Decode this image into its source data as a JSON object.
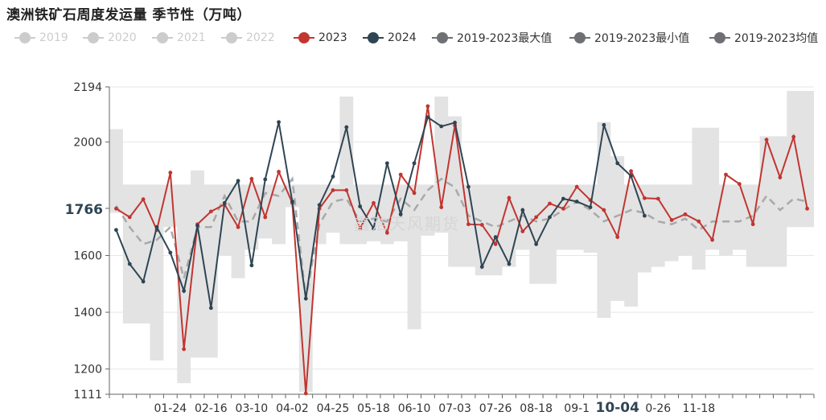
{
  "title": "澳洲铁矿石周度发运量 季节性（万吨）",
  "watermark": "鑫浩天风期货",
  "colors": {
    "disabled": "#cccccc",
    "y2023": "#c23531",
    "y2024": "#2f4554",
    "max": "#6e7074",
    "min": "#6e7074",
    "avg": "#6e7074",
    "band": "#e3e3e3",
    "avg_line": "#a9a9a9"
  },
  "legend": [
    {
      "label": "2019",
      "active": false,
      "color": "#cccccc",
      "icon": "circle-line-icon"
    },
    {
      "label": "2020",
      "active": false,
      "color": "#cccccc",
      "icon": "circle-line-icon"
    },
    {
      "label": "2021",
      "active": false,
      "color": "#cccccc",
      "icon": "circle-line-icon"
    },
    {
      "label": "2022",
      "active": false,
      "color": "#cccccc",
      "icon": "circle-line-icon"
    },
    {
      "label": "2023",
      "active": true,
      "color": "#c23531",
      "icon": "circle-line-icon"
    },
    {
      "label": "2024",
      "active": true,
      "color": "#2f4554",
      "icon": "circle-line-icon"
    },
    {
      "label": "2019-2023最大值",
      "active": true,
      "color": "#6e7074",
      "icon": "circle-line-icon"
    },
    {
      "label": "2019-2023最小值",
      "active": true,
      "color": "#6e7074",
      "icon": "circle-line-icon"
    },
    {
      "label": "2019-2023均值",
      "active": true,
      "color": "#6e7074",
      "icon": "circle-line-icon"
    }
  ],
  "chart_data": {
    "type": "line",
    "ylim": [
      1111,
      2194
    ],
    "y_ticks": [
      "1111",
      "1200",
      "1400",
      "1600",
      "2000",
      "2194"
    ],
    "y_pointer_label": "1766",
    "y_pointer_value": 1766,
    "x_tick_labels": [
      "01-24",
      "02-16",
      "03-10",
      "04-02",
      "04-25",
      "05-18",
      "06-10",
      "07-03",
      "07-26",
      "08-18",
      "09-1",
      "10-04",
      "0-26",
      "11-18"
    ],
    "x_tick_weeks": [
      4,
      7,
      10,
      13,
      16,
      19,
      22,
      25,
      28,
      31,
      34,
      37,
      40,
      43
    ],
    "x_pointer_label": "10-04",
    "x_pointer_week": 37,
    "weeks": 52,
    "series": [
      {
        "name": "2023",
        "color": "#c23531",
        "values": [
          1765,
          1735,
          1798,
          1690,
          1892,
          1270,
          1710,
          1755,
          1780,
          1700,
          1870,
          1735,
          1895,
          1785,
          1114,
          1765,
          1830,
          1830,
          1695,
          1785,
          1680,
          1885,
          1820,
          2126,
          1770,
          2058,
          1710,
          1708,
          1640,
          1803,
          1685,
          1735,
          1783,
          1765,
          1842,
          1795,
          1760,
          1665,
          1897,
          1802,
          1800,
          1725,
          1745,
          1720,
          1655,
          1885,
          1852,
          1710,
          2008,
          1875,
          2018,
          1765
        ]
      },
      {
        "name": "2024",
        "color": "#2f4554",
        "values": [
          1690,
          1570,
          1508,
          1700,
          1610,
          1475,
          1705,
          1415,
          1785,
          1863,
          1565,
          1868,
          2070,
          1790,
          1448,
          1778,
          1878,
          2052,
          1773,
          1695,
          1925,
          1745,
          1925,
          2087,
          2055,
          2068,
          1842,
          1560,
          1665,
          1570,
          1760,
          1640,
          1735,
          1800,
          1790,
          1770,
          2060,
          1925,
          1880,
          1740
        ]
      },
      {
        "name": "2019-2023最大值",
        "values": [
          2045,
          1850,
          1850,
          1850,
          1850,
          1850,
          1900,
          1850,
          1850,
          1850,
          1850,
          1850,
          1850,
          1850,
          1850,
          1850,
          1850,
          2160,
          1850,
          1850,
          1850,
          1850,
          1850,
          1850,
          2160,
          2090,
          1850,
          1850,
          1850,
          1850,
          1850,
          1850,
          1850,
          1850,
          1850,
          1850,
          2070,
          1950,
          1850,
          1850,
          1850,
          1850,
          1850,
          2050,
          2050,
          1850,
          1850,
          1850,
          2020,
          2020,
          2180,
          2180
        ]
      },
      {
        "name": "2019-2023最小值",
        "values": [
          1750,
          1360,
          1360,
          1230,
          1700,
          1150,
          1240,
          1240,
          1600,
          1520,
          1620,
          1660,
          1640,
          1770,
          1120,
          1640,
          1680,
          1640,
          1640,
          1650,
          1640,
          1650,
          1340,
          1670,
          1680,
          1560,
          1560,
          1530,
          1530,
          1560,
          1620,
          1500,
          1500,
          1620,
          1620,
          1610,
          1380,
          1440,
          1420,
          1540,
          1560,
          1580,
          1600,
          1550,
          1620,
          1600,
          1620,
          1560,
          1560,
          1560,
          1700,
          1700
        ]
      },
      {
        "name": "2019-2023均值",
        "values": [
          1775,
          1700,
          1640,
          1655,
          1700,
          1520,
          1700,
          1700,
          1810,
          1720,
          1720,
          1820,
          1810,
          1870,
          1450,
          1710,
          1790,
          1800,
          1720,
          1730,
          1720,
          1800,
          1760,
          1830,
          1870,
          1840,
          1740,
          1720,
          1700,
          1720,
          1740,
          1720,
          1730,
          1760,
          1790,
          1760,
          1720,
          1740,
          1760,
          1750,
          1720,
          1710,
          1730,
          1690,
          1720,
          1720,
          1720,
          1740,
          1810,
          1760,
          1800,
          1790
        ]
      }
    ]
  }
}
